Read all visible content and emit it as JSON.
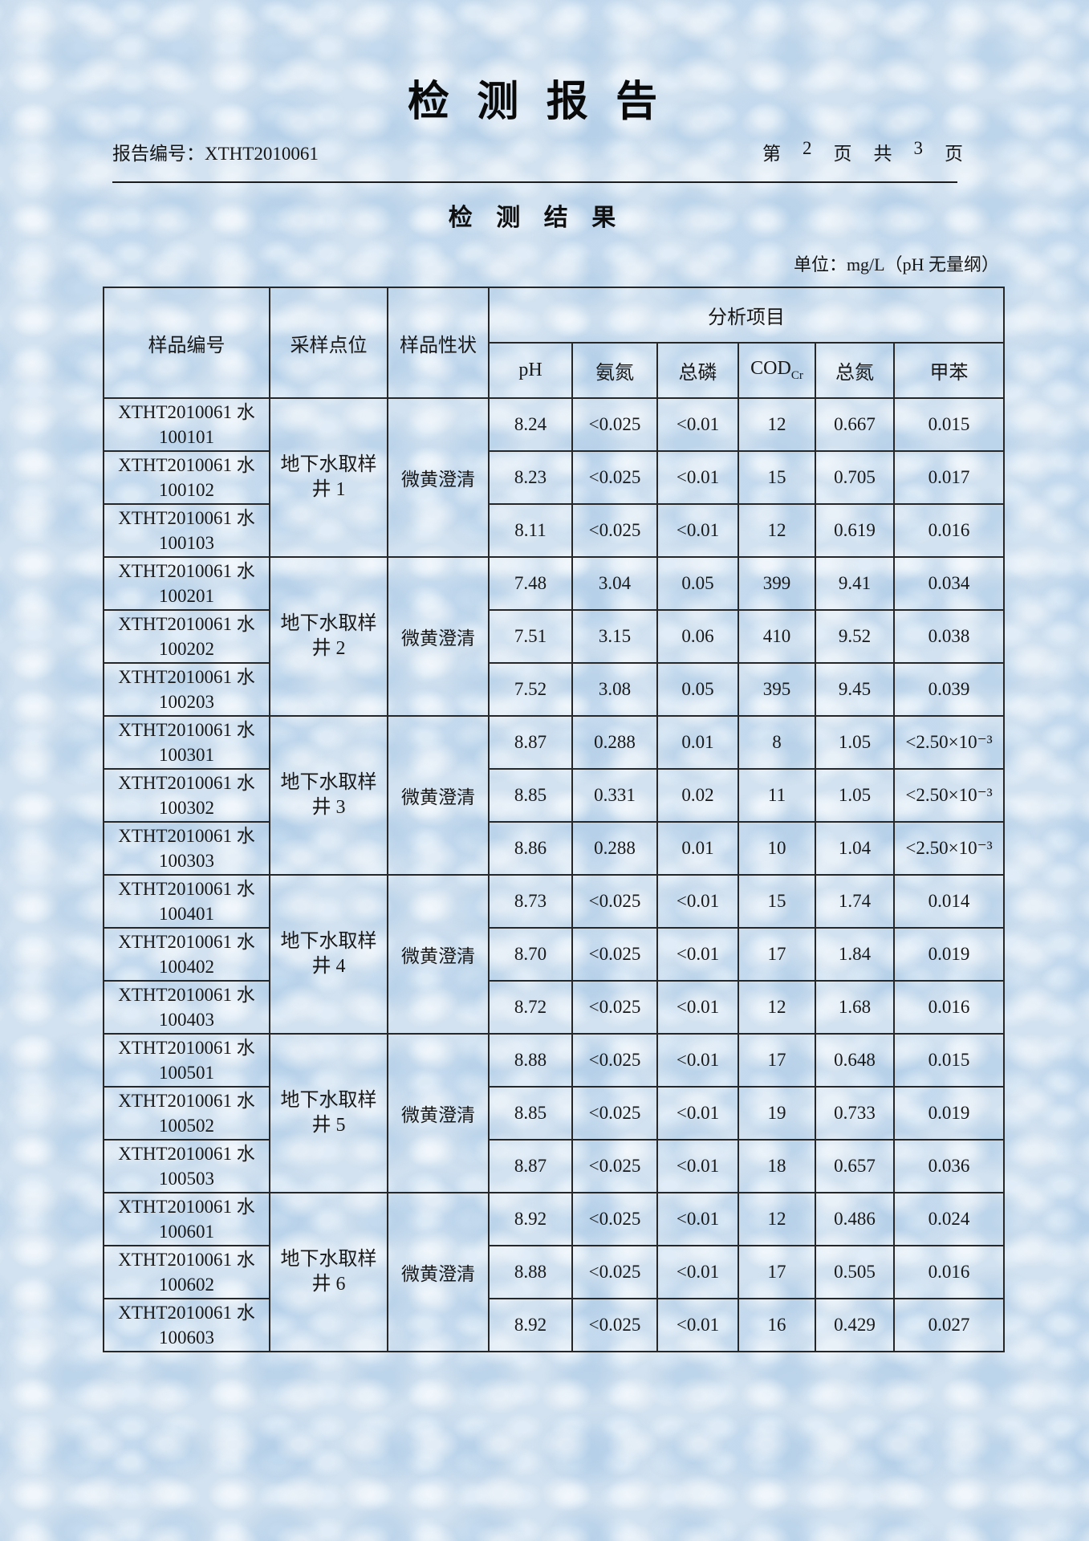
{
  "header": {
    "title": "检 测 报 告",
    "report_no_label": "报告编号：",
    "report_no": "XTHT2010061",
    "page_info_parts": [
      "第",
      "2",
      "页",
      "共",
      "3",
      "页"
    ]
  },
  "section_title": "检 测 结 果",
  "unit_note": "单位：mg/L（pH 无量纲）",
  "table": {
    "headers": {
      "sample_id": "样品编号",
      "sampling_point": "采样点位",
      "sample_property": "样品性状",
      "analysis_group": "分析项目",
      "ph": "pH",
      "ammonia_nitrogen": "氨氮",
      "total_phosphorus": "总磷",
      "cod_main": "COD",
      "cod_sub": "Cr",
      "total_nitrogen": "总氮",
      "toluene": "甲苯"
    },
    "groups": [
      {
        "sampling_point_line1": "地下水取样",
        "sampling_point_line2": "井 1",
        "sample_property": "微黄澄清",
        "rows": [
          {
            "id_line1": "XTHT2010061 水",
            "id_line2": "100101",
            "values": [
              "8.24",
              "<0.025",
              "<0.01",
              "12",
              "0.667",
              "0.015"
            ]
          },
          {
            "id_line1": "XTHT2010061 水",
            "id_line2": "100102",
            "values": [
              "8.23",
              "<0.025",
              "<0.01",
              "15",
              "0.705",
              "0.017"
            ]
          },
          {
            "id_line1": "XTHT2010061 水",
            "id_line2": "100103",
            "values": [
              "8.11",
              "<0.025",
              "<0.01",
              "12",
              "0.619",
              "0.016"
            ]
          }
        ]
      },
      {
        "sampling_point_line1": "地下水取样",
        "sampling_point_line2": "井 2",
        "sample_property": "微黄澄清",
        "rows": [
          {
            "id_line1": "XTHT2010061 水",
            "id_line2": "100201",
            "values": [
              "7.48",
              "3.04",
              "0.05",
              "399",
              "9.41",
              "0.034"
            ]
          },
          {
            "id_line1": "XTHT2010061 水",
            "id_line2": "100202",
            "values": [
              "7.51",
              "3.15",
              "0.06",
              "410",
              "9.52",
              "0.038"
            ]
          },
          {
            "id_line1": "XTHT2010061 水",
            "id_line2": "100203",
            "values": [
              "7.52",
              "3.08",
              "0.05",
              "395",
              "9.45",
              "0.039"
            ]
          }
        ]
      },
      {
        "sampling_point_line1": "地下水取样",
        "sampling_point_line2": "井 3",
        "sample_property": "微黄澄清",
        "rows": [
          {
            "id_line1": "XTHT2010061 水",
            "id_line2": "100301",
            "values": [
              "8.87",
              "0.288",
              "0.01",
              "8",
              "1.05",
              "<2.50×10⁻³"
            ]
          },
          {
            "id_line1": "XTHT2010061 水",
            "id_line2": "100302",
            "values": [
              "8.85",
              "0.331",
              "0.02",
              "11",
              "1.05",
              "<2.50×10⁻³"
            ]
          },
          {
            "id_line1": "XTHT2010061 水",
            "id_line2": "100303",
            "values": [
              "8.86",
              "0.288",
              "0.01",
              "10",
              "1.04",
              "<2.50×10⁻³"
            ]
          }
        ]
      },
      {
        "sampling_point_line1": "地下水取样",
        "sampling_point_line2": "井 4",
        "sample_property": "微黄澄清",
        "rows": [
          {
            "id_line1": "XTHT2010061 水",
            "id_line2": "100401",
            "values": [
              "8.73",
              "<0.025",
              "<0.01",
              "15",
              "1.74",
              "0.014"
            ]
          },
          {
            "id_line1": "XTHT2010061 水",
            "id_line2": "100402",
            "values": [
              "8.70",
              "<0.025",
              "<0.01",
              "17",
              "1.84",
              "0.019"
            ]
          },
          {
            "id_line1": "XTHT2010061 水",
            "id_line2": "100403",
            "values": [
              "8.72",
              "<0.025",
              "<0.01",
              "12",
              "1.68",
              "0.016"
            ]
          }
        ]
      },
      {
        "sampling_point_line1": "地下水取样",
        "sampling_point_line2": "井 5",
        "sample_property": "微黄澄清",
        "rows": [
          {
            "id_line1": "XTHT2010061 水",
            "id_line2": "100501",
            "values": [
              "8.88",
              "<0.025",
              "<0.01",
              "17",
              "0.648",
              "0.015"
            ]
          },
          {
            "id_line1": "XTHT2010061 水",
            "id_line2": "100502",
            "values": [
              "8.85",
              "<0.025",
              "<0.01",
              "19",
              "0.733",
              "0.019"
            ]
          },
          {
            "id_line1": "XTHT2010061 水",
            "id_line2": "100503",
            "values": [
              "8.87",
              "<0.025",
              "<0.01",
              "18",
              "0.657",
              "0.036"
            ]
          }
        ]
      },
      {
        "sampling_point_line1": "地下水取样",
        "sampling_point_line2": "井 6",
        "sample_property": "微黄澄清",
        "rows": [
          {
            "id_line1": "XTHT2010061 水",
            "id_line2": "100601",
            "values": [
              "8.92",
              "<0.025",
              "<0.01",
              "12",
              "0.486",
              "0.024"
            ]
          },
          {
            "id_line1": "XTHT2010061 水",
            "id_line2": "100602",
            "values": [
              "8.88",
              "<0.025",
              "<0.01",
              "17",
              "0.505",
              "0.016"
            ]
          },
          {
            "id_line1": "XTHT2010061 水",
            "id_line2": "100603",
            "values": [
              "8.92",
              "<0.025",
              "<0.01",
              "16",
              "0.429",
              "0.027"
            ]
          }
        ]
      }
    ]
  }
}
